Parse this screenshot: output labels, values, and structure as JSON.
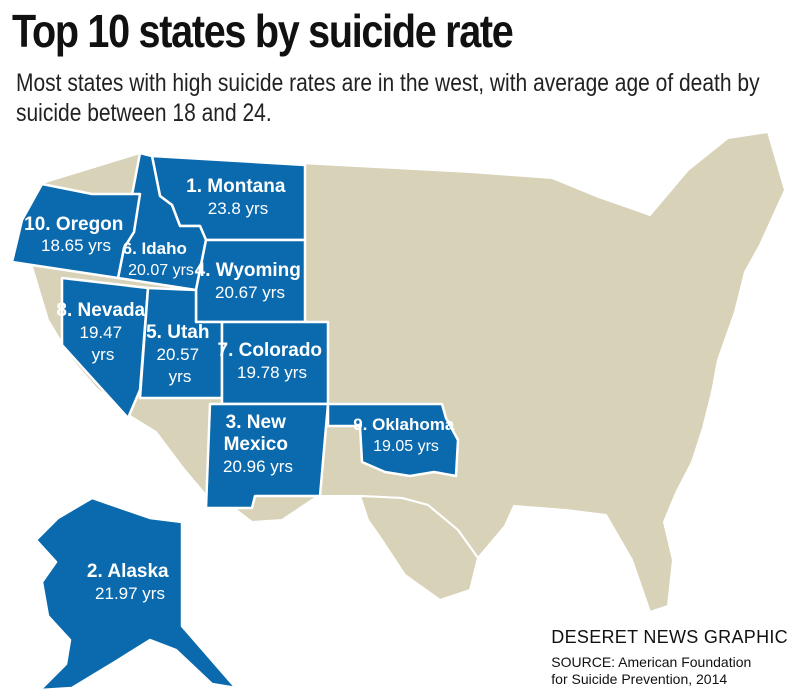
{
  "header": {
    "title": "Top 10 states by suicide rate",
    "subtitle": "Most states with high suicide rates are in the west, with average age of death by suicide between 18 and 24."
  },
  "colors": {
    "highlight": "#0a6aad",
    "land": "#d8d2b8",
    "border": "#ffffff"
  },
  "states": [
    {
      "name": "1. Montana",
      "age": "23.8 yrs"
    },
    {
      "name": "2. Alaska",
      "age": "21.97 yrs"
    },
    {
      "name": "3. New",
      "name2": "Mexico",
      "age": "20.96 yrs"
    },
    {
      "name": "4. Wyoming",
      "age": "20.67 yrs"
    },
    {
      "name": "5. Utah",
      "age": "20.57",
      "age2": "yrs"
    },
    {
      "name": "6. Idaho",
      "age": "20.07 yrs"
    },
    {
      "name": "7. Colorado",
      "age": "19.78 yrs"
    },
    {
      "name": "8. Nevada",
      "age": "19.47",
      "age2": "yrs"
    },
    {
      "name": "9. Oklahoma",
      "age": "19.05 yrs"
    },
    {
      "name": "10. Oregon",
      "age": "18.65 yrs"
    }
  ],
  "credit": {
    "org": "DESERET NEWS GRAPHIC",
    "source_line1": "SOURCE: American Foundation",
    "source_line2": "for Suicide Prevention, 2014"
  }
}
